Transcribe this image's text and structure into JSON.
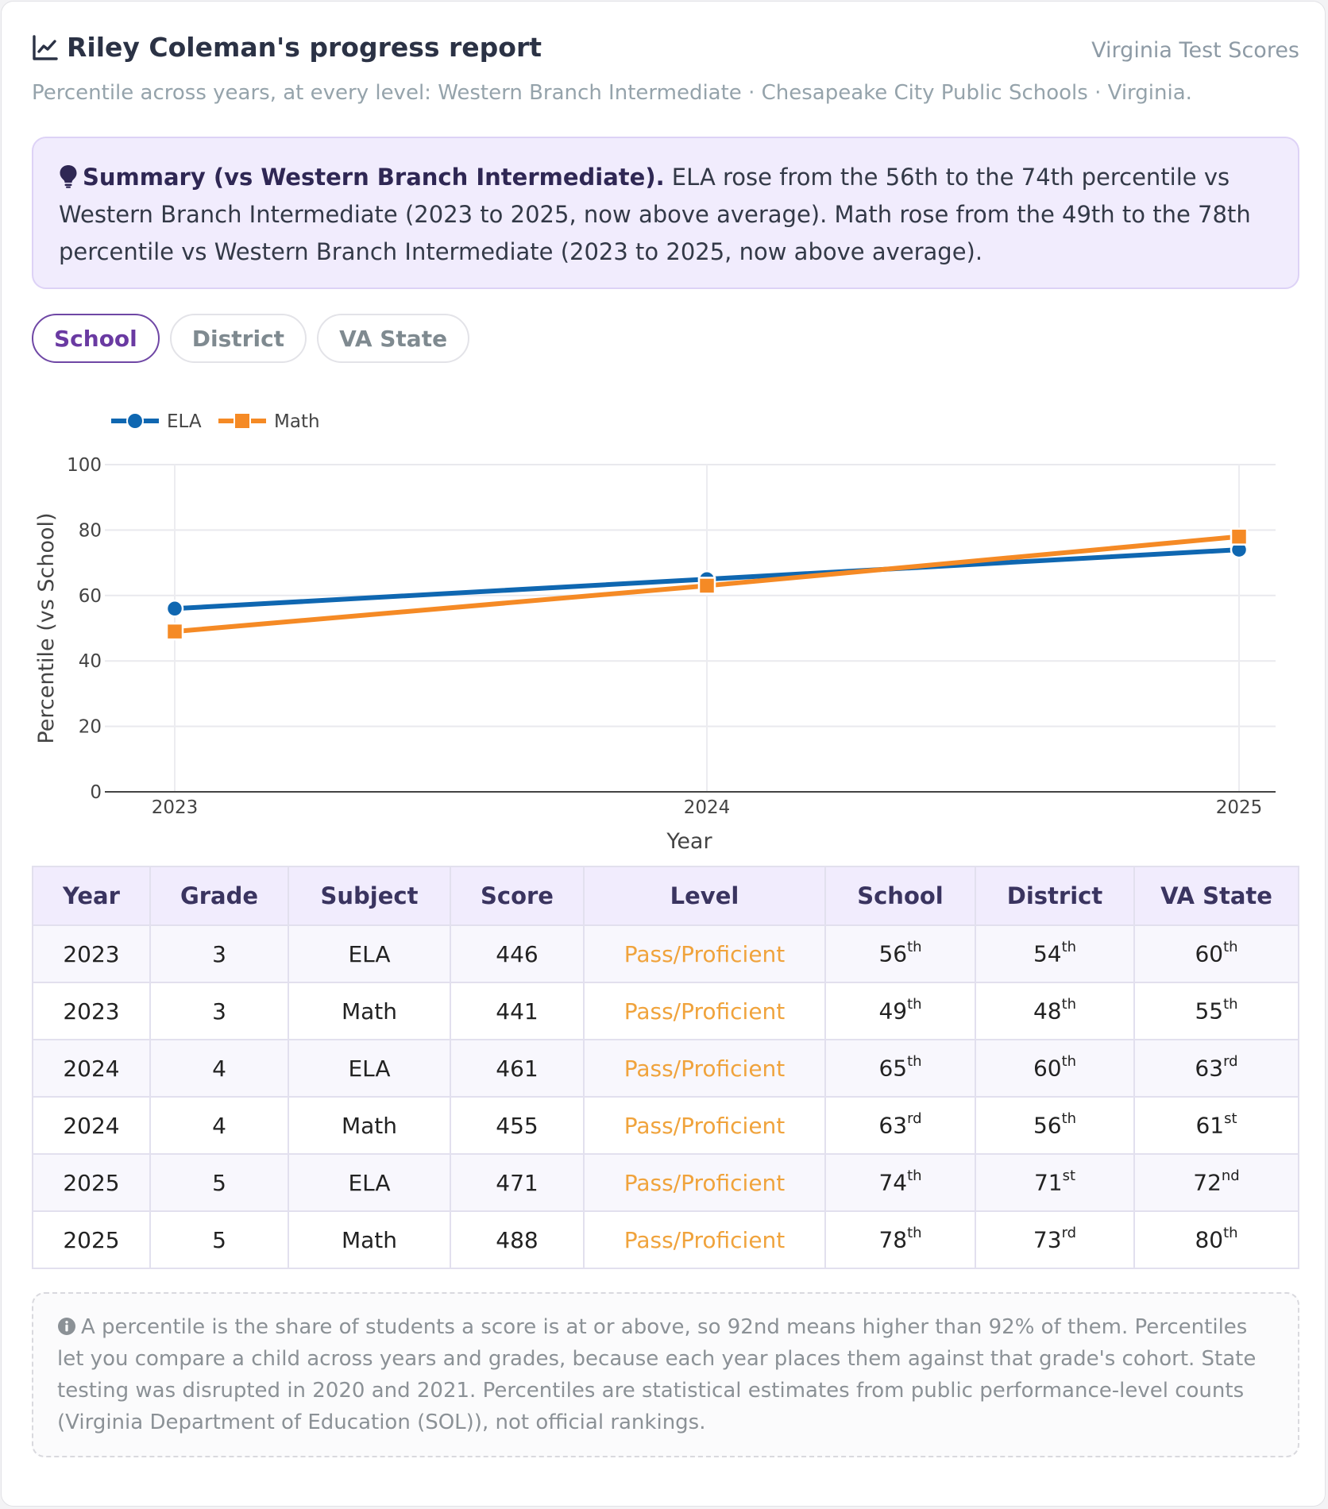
{
  "header": {
    "title": "Riley Coleman's progress report",
    "brand": "Virginia Test Scores",
    "subtitle": "Percentile across years, at every level: Western Branch Intermediate · Chesapeake City Public Schools · Virginia."
  },
  "summary": {
    "lead": "Summary (vs Western Branch Intermediate).",
    "text": " ELA rose from the 56th to the 74th percentile vs Western Branch Intermediate (2023 to 2025, now above average). Math rose from the 49th to the 78th percentile vs Western Branch Intermediate (2023 to 2025, now above average)."
  },
  "tabs": [
    {
      "label": "School",
      "active": true
    },
    {
      "label": "District",
      "active": false
    },
    {
      "label": "VA State",
      "active": false
    }
  ],
  "chart_data": {
    "type": "line",
    "x": [
      2023,
      2024,
      2025
    ],
    "x_ticks": [
      "2023",
      "2024",
      "2025"
    ],
    "series": [
      {
        "name": "ELA",
        "values": [
          56,
          65,
          74
        ],
        "color": "#0f67b1",
        "marker": "circle"
      },
      {
        "name": "Math",
        "values": [
          49,
          63,
          78
        ],
        "color": "#f58a25",
        "marker": "square"
      }
    ],
    "xlabel": "Year",
    "ylabel": "Percentile (vs School)",
    "ylim": [
      0,
      100
    ],
    "y_ticks": [
      0,
      20,
      40,
      60,
      80,
      100
    ],
    "grid": true,
    "legend": "top-left"
  },
  "table": {
    "headers": [
      "Year",
      "Grade",
      "Subject",
      "Score",
      "Level",
      "School",
      "District",
      "VA State"
    ],
    "rows": [
      {
        "year": "2023",
        "grade": "3",
        "subject": "ELA",
        "score": "446",
        "level": "Pass/Proficient",
        "school": [
          "56",
          "th"
        ],
        "district": [
          "54",
          "th"
        ],
        "state": [
          "60",
          "th"
        ]
      },
      {
        "year": "2023",
        "grade": "3",
        "subject": "Math",
        "score": "441",
        "level": "Pass/Proficient",
        "school": [
          "49",
          "th"
        ],
        "district": [
          "48",
          "th"
        ],
        "state": [
          "55",
          "th"
        ]
      },
      {
        "year": "2024",
        "grade": "4",
        "subject": "ELA",
        "score": "461",
        "level": "Pass/Proficient",
        "school": [
          "65",
          "th"
        ],
        "district": [
          "60",
          "th"
        ],
        "state": [
          "63",
          "rd"
        ]
      },
      {
        "year": "2024",
        "grade": "4",
        "subject": "Math",
        "score": "455",
        "level": "Pass/Proficient",
        "school": [
          "63",
          "rd"
        ],
        "district": [
          "56",
          "th"
        ],
        "state": [
          "61",
          "st"
        ]
      },
      {
        "year": "2025",
        "grade": "5",
        "subject": "ELA",
        "score": "471",
        "level": "Pass/Proficient",
        "school": [
          "74",
          "th"
        ],
        "district": [
          "71",
          "st"
        ],
        "state": [
          "72",
          "nd"
        ]
      },
      {
        "year": "2025",
        "grade": "5",
        "subject": "Math",
        "score": "488",
        "level": "Pass/Proficient",
        "school": [
          "78",
          "th"
        ],
        "district": [
          "73",
          "rd"
        ],
        "state": [
          "80",
          "th"
        ]
      }
    ]
  },
  "note": {
    "icon": "info-icon",
    "text": "A percentile is the share of students a score is at or above, so 92nd means higher than 92% of them. Percentiles let you compare a child across years and grades, because each year places them against that grade's cohort. State testing was disrupted in 2020 and 2021. Percentiles are statistical estimates from public performance-level counts (Virginia Department of Education (SOL)), not official rankings."
  },
  "colors": {
    "accent": "#6a3aa2",
    "ela": "#0f67b1",
    "math": "#f58a25",
    "level": "#f0a33c"
  }
}
